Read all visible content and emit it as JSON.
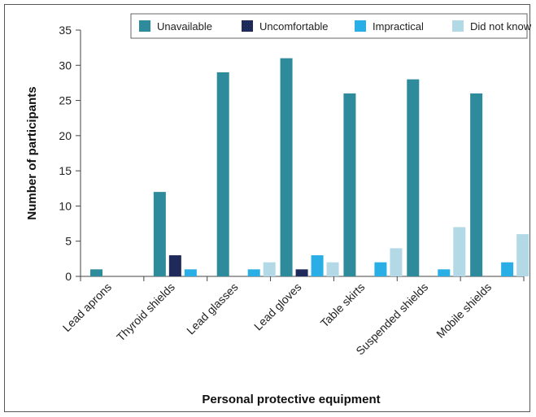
{
  "chart_data": {
    "type": "bar",
    "xlabel": "Personal protective equipment",
    "ylabel": "Number of participants",
    "ylim": [
      0,
      35
    ],
    "yticks": [
      0,
      5,
      10,
      15,
      20,
      25,
      30,
      35
    ],
    "grid": false,
    "legend_position": "top-right",
    "categories": [
      "Lead aprons",
      "Thyroid shields",
      "Lead glasses",
      "Lead gloves",
      "Table skirts",
      "Suspended shields",
      "Mobile shields"
    ],
    "series": [
      {
        "name": "Unavailable",
        "color": "#2e8b9b",
        "values": [
          1,
          12,
          29,
          31,
          26,
          28,
          26
        ]
      },
      {
        "name": "Uncomfortable",
        "color": "#1f2a5a",
        "values": [
          0,
          3,
          0,
          1,
          0,
          0,
          0
        ]
      },
      {
        "name": "Impractical",
        "color": "#2aaee6",
        "values": [
          0,
          1,
          1,
          3,
          2,
          1,
          2
        ]
      },
      {
        "name": "Did not know",
        "color": "#b3d9e6",
        "values": [
          0,
          0,
          2,
          2,
          4,
          7,
          6
        ]
      }
    ]
  }
}
